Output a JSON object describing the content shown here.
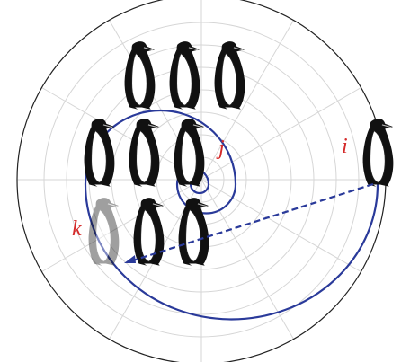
{
  "labels": {
    "i": "i",
    "j": "j",
    "k": "k"
  }
}
